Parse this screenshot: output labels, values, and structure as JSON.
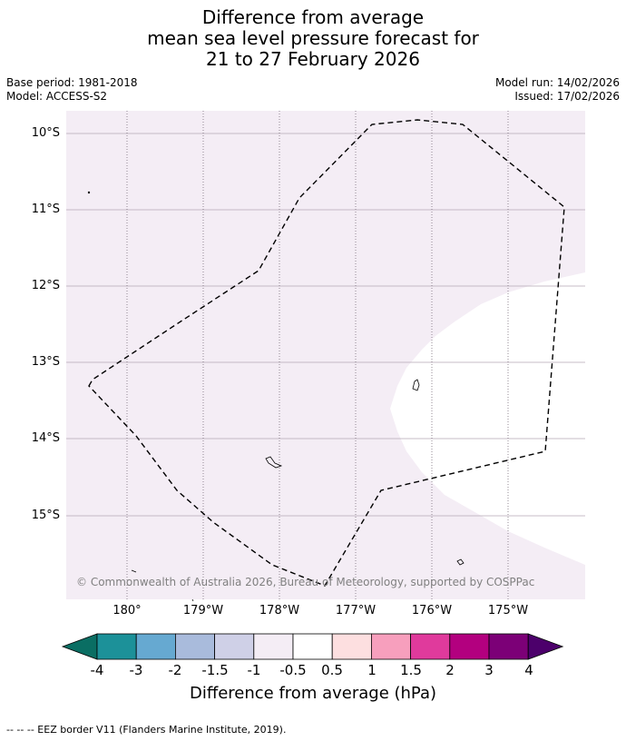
{
  "title": {
    "line1": "Difference from average",
    "line2": "mean sea level pressure forecast for",
    "line3": "21 to 27 February 2026"
  },
  "meta": {
    "base_period": "Base period: 1981-2018",
    "model": "Model: ACCESS-S2",
    "model_run": "Model run: 14/02/2026",
    "issued": "Issued: 17/02/2026"
  },
  "map": {
    "lat_labels": [
      "10°S",
      "11°S",
      "12°S",
      "13°S",
      "14°S",
      "15°S"
    ],
    "lon_labels": [
      "180°",
      "179°W",
      "178°W",
      "177°W",
      "176°W",
      "175°W"
    ],
    "background_color": "#f4edf5",
    "neutral_color": "#ffffff",
    "copyright": "© Commonwealth of Australia 2026, Bureau of Meteorology, supported by COSPPac"
  },
  "colorbar": {
    "tick_labels": [
      "-4",
      "-3",
      "-2",
      "-1.5",
      "-1",
      "-0.5",
      "0.5",
      "1",
      "1.5",
      "2",
      "3",
      "4"
    ],
    "colors": [
      "#0a6e63",
      "#1c9199",
      "#66a9d1",
      "#a9bbdc",
      "#cfd0e7",
      "#f4edf5",
      "#ffffff",
      "#fddfe0",
      "#f79fbd",
      "#e03a9c",
      "#b3007f",
      "#7c0077",
      "#4c006b"
    ],
    "label": "Difference from average (hPa)"
  },
  "footnote": "--  --  -- EEZ border V11 (Flanders Marine Institute, 2019)."
}
